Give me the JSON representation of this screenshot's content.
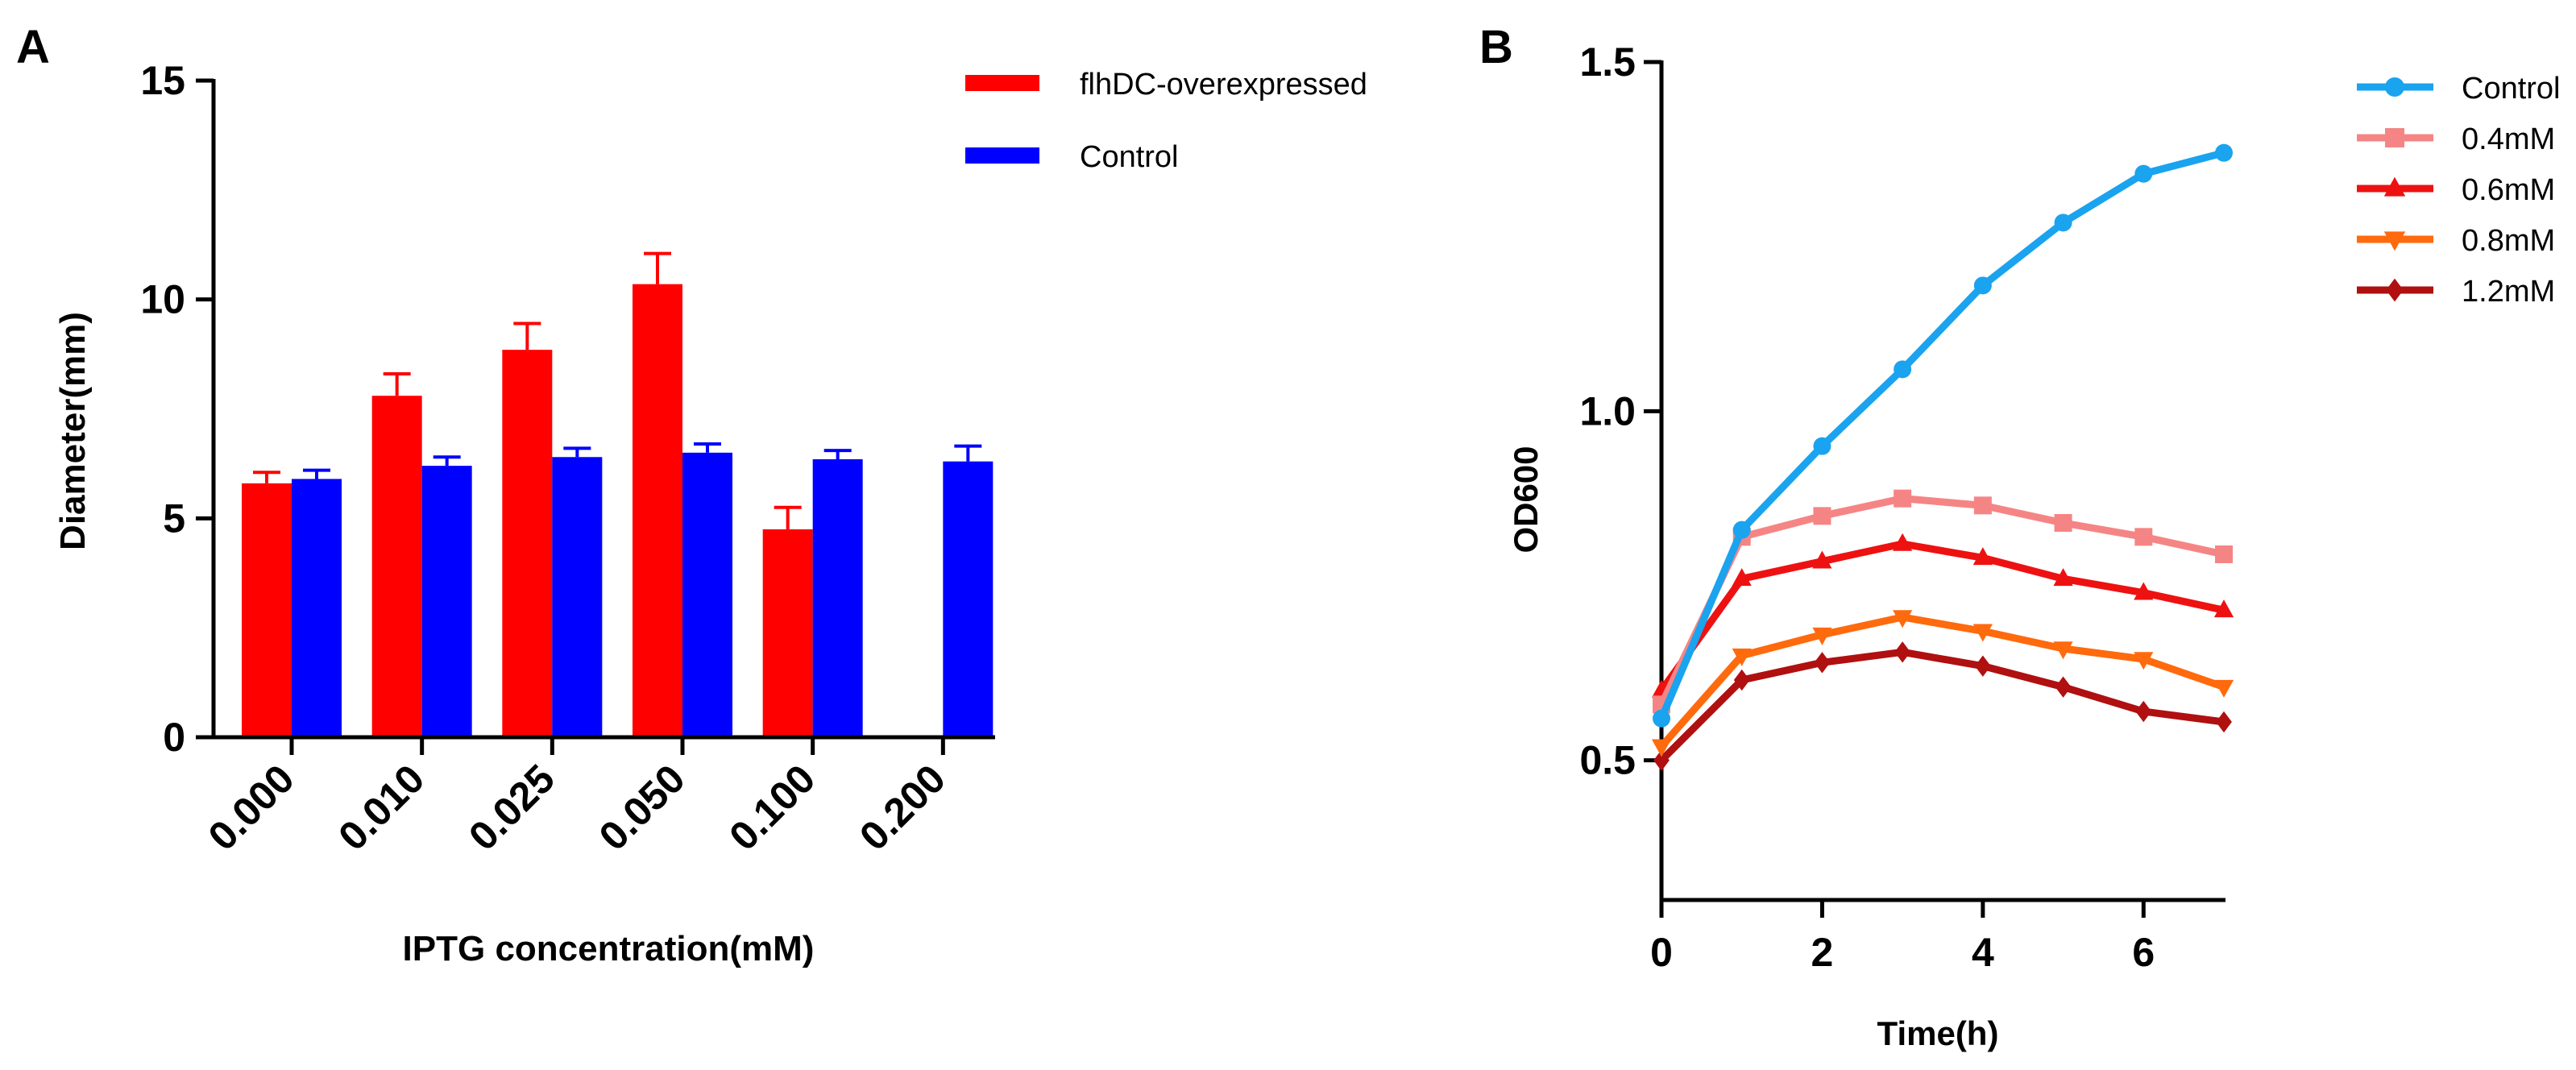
{
  "chart_data": [
    {
      "panel_label": "A",
      "type": "bar",
      "xlabel": "IPTG concentration(mM)",
      "ylabel": "Diameter(mm)",
      "ylim": [
        0,
        15
      ],
      "yticks": [
        0,
        5,
        10,
        15
      ],
      "categories": [
        "0.000",
        "0.010",
        "0.025",
        "0.050",
        "0.100",
        "0.200"
      ],
      "error_bars": "upper only",
      "legend_position": "top-right",
      "series": [
        {
          "name": "flhDC-overexpressed",
          "color": "#ff0000",
          "values": [
            5.8,
            7.8,
            8.85,
            10.35,
            4.75,
            null
          ],
          "errors": [
            0.25,
            0.5,
            0.6,
            0.7,
            0.5,
            null
          ]
        },
        {
          "name": "Control",
          "color": "#0000ff",
          "values": [
            5.9,
            6.2,
            6.4,
            6.5,
            6.35,
            6.3
          ],
          "errors": [
            0.2,
            0.2,
            0.2,
            0.2,
            0.2,
            0.35
          ]
        }
      ]
    },
    {
      "panel_label": "B",
      "type": "line",
      "xlabel": "Time(h)",
      "ylabel": "OD600",
      "xlim": [
        0,
        7
      ],
      "ylim": [
        0.3,
        1.5
      ],
      "xticks": [
        0,
        2,
        4,
        6
      ],
      "yticks": [
        0.5,
        1.0,
        1.5
      ],
      "ytick_labels": [
        "0.5",
        "1.0",
        "1.5"
      ],
      "x": [
        0,
        1,
        2,
        3,
        4,
        5,
        6,
        7
      ],
      "legend_position": "top-right",
      "series": [
        {
          "name": "Control",
          "color": "#1aa3ef",
          "marker": "circle",
          "values": [
            0.56,
            0.83,
            0.95,
            1.06,
            1.18,
            1.27,
            1.34,
            1.37
          ]
        },
        {
          "name": "0.4mM",
          "color": "#f58585",
          "marker": "square",
          "values": [
            0.58,
            0.82,
            0.85,
            0.875,
            0.865,
            0.84,
            0.82,
            0.795
          ]
        },
        {
          "name": "0.6mM",
          "color": "#ee1111",
          "marker": "triangle-up",
          "values": [
            0.6,
            0.76,
            0.785,
            0.81,
            0.79,
            0.76,
            0.74,
            0.715
          ]
        },
        {
          "name": "0.8mM",
          "color": "#ff6a0d",
          "marker": "triangle-down",
          "values": [
            0.52,
            0.65,
            0.68,
            0.705,
            0.685,
            0.66,
            0.645,
            0.605
          ]
        },
        {
          "name": "1.2mM",
          "color": "#b01010",
          "marker": "diamond",
          "values": [
            0.5,
            0.615,
            0.64,
            0.655,
            0.635,
            0.605,
            0.57,
            0.555
          ]
        }
      ]
    }
  ]
}
